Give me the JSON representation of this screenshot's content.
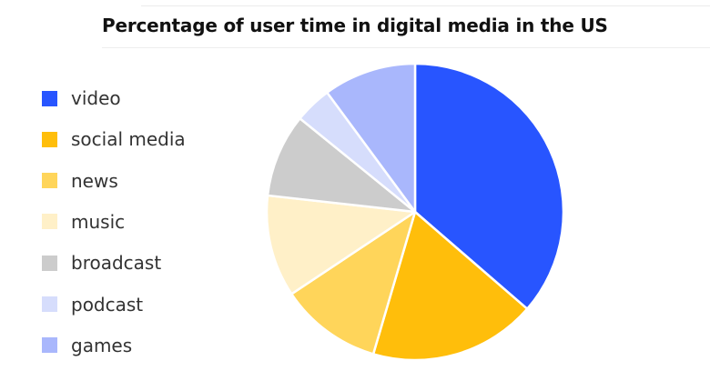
{
  "chart_data": {
    "type": "pie",
    "title": "Percentage of user time in digital media in the US",
    "legend_position": "left",
    "categories": [
      "video",
      "social media",
      "news",
      "music",
      "broadcast",
      "podcast",
      "games"
    ],
    "values": [
      36,
      18,
      11,
      11,
      9,
      4,
      10
    ],
    "colors": [
      "#2855ff",
      "#ffbe0b",
      "#ffd55a",
      "#fff0c8",
      "#cccccc",
      "#d6ddfc",
      "#a9b7fc"
    ]
  }
}
